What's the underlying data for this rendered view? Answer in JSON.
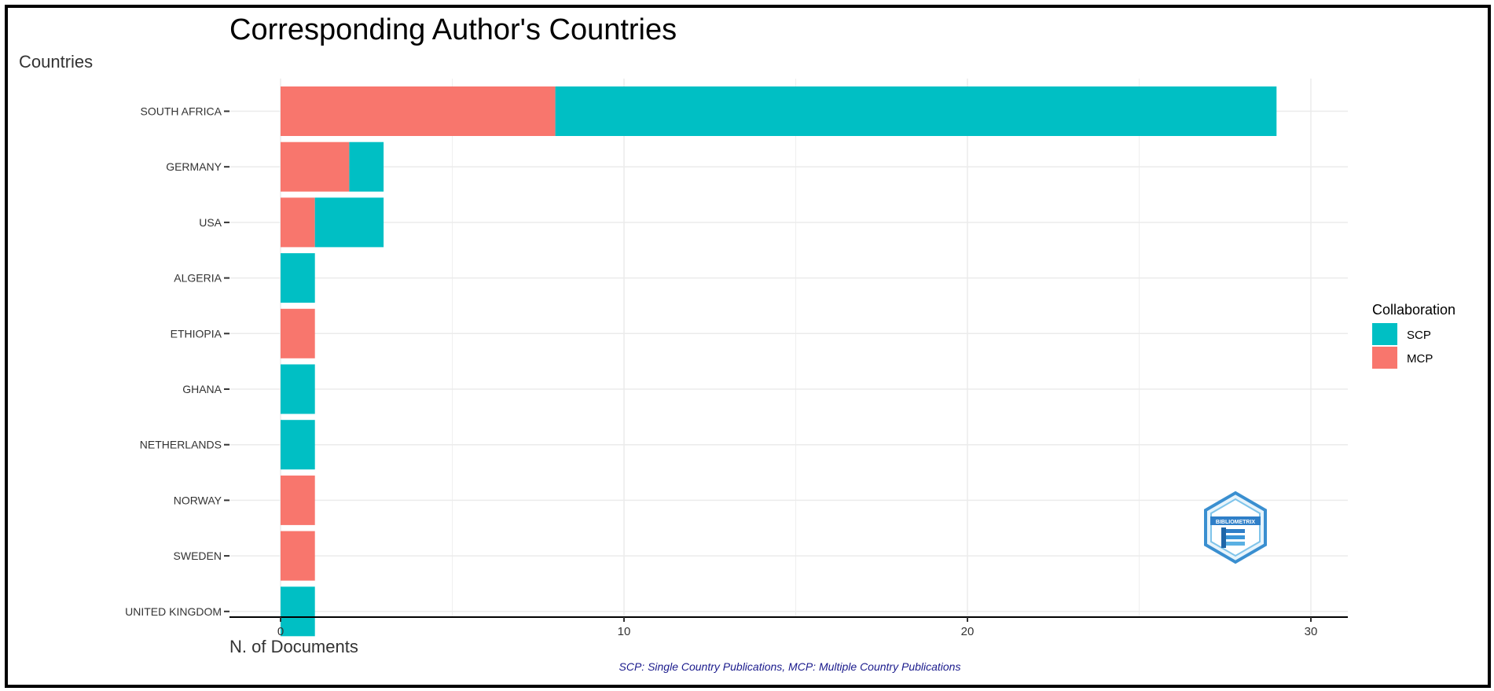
{
  "chart_data": {
    "type": "bar",
    "orientation": "horizontal",
    "stacked": true,
    "title": "Corresponding Author's Countries",
    "ylabel": "Countries",
    "xlabel": "N. of Documents",
    "caption": "SCP: Single Country Publications, MCP: Multiple Country Publications",
    "categories": [
      "SOUTH AFRICA",
      "GERMANY",
      "USA",
      "ALGERIA",
      "ETHIOPIA",
      "GHANA",
      "NETHERLANDS",
      "NORWAY",
      "SWEDEN",
      "UNITED KINGDOM"
    ],
    "series": [
      {
        "name": "MCP",
        "color": "#F8766D",
        "values": [
          8,
          2,
          1,
          0,
          1,
          0,
          0,
          1,
          1,
          0
        ]
      },
      {
        "name": "SCP",
        "color": "#00BFC4",
        "values": [
          21,
          1,
          2,
          1,
          0,
          1,
          1,
          0,
          0,
          1
        ]
      }
    ],
    "xlim": [
      0,
      30
    ],
    "xticks": [
      "0",
      "10",
      "20",
      "30"
    ],
    "legend": {
      "title": "Collaboration",
      "position": "right",
      "items": [
        {
          "label": "SCP",
          "color": "#00BFC4"
        },
        {
          "label": "MCP",
          "color": "#F8766D"
        }
      ]
    },
    "grid": true
  },
  "watermark": {
    "text": "BIBLIOMETRIX",
    "icon": "bibliometrix-logo-icon"
  }
}
